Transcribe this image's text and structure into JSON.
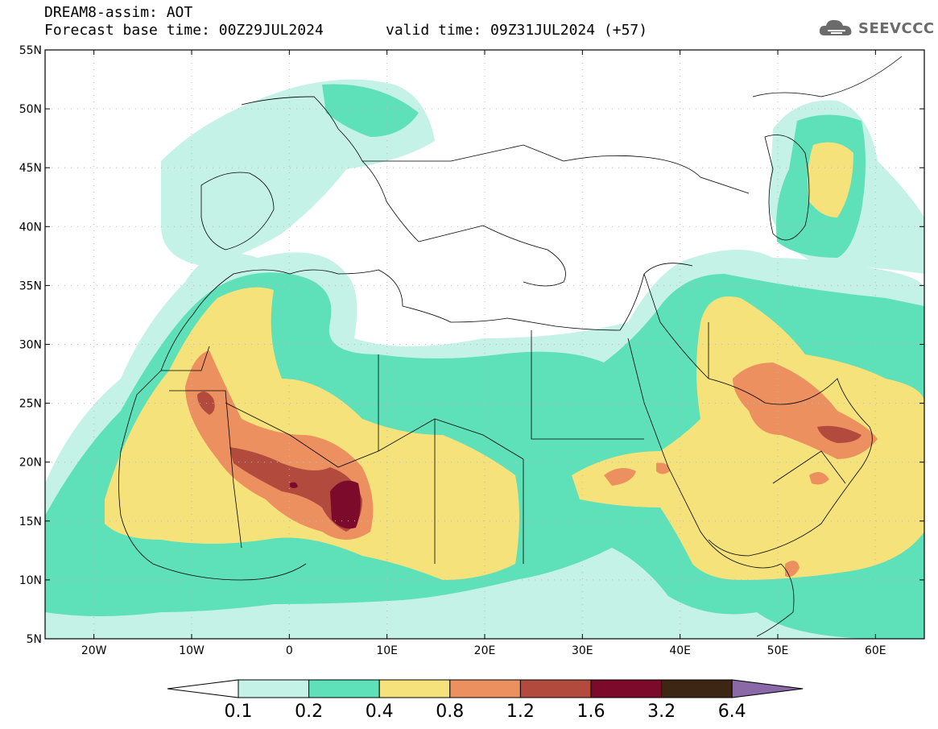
{
  "title": {
    "line1": "DREAM8-assim: AOT",
    "line2": "Forecast base time: 00Z29JUL2024",
    "valid": "valid time: 09Z31JUL2024 (+57)"
  },
  "logo": {
    "text": "SEEVCCC",
    "icon": "cloud-icon"
  },
  "map": {
    "lon_range": [
      -25,
      65
    ],
    "lat_range": [
      5,
      55
    ],
    "lat_labels": [
      "55N",
      "50N",
      "45N",
      "40N",
      "35N",
      "30N",
      "25N",
      "20N",
      "15N",
      "10N",
      "5N"
    ],
    "lat_values": [
      55,
      50,
      45,
      40,
      35,
      30,
      25,
      20,
      15,
      10,
      5
    ],
    "lon_labels": [
      "20W",
      "10W",
      "0",
      "10E",
      "20E",
      "30E",
      "40E",
      "50E",
      "60E"
    ],
    "lon_values": [
      -20,
      -10,
      0,
      10,
      20,
      30,
      40,
      50,
      60
    ]
  },
  "colorbar": {
    "labels": [
      "0.1",
      "0.2",
      "0.4",
      "0.8",
      "1.2",
      "1.6",
      "3.2",
      "6.4"
    ],
    "colors": [
      "#ffffff",
      "#c5f2e6",
      "#5ee0b8",
      "#f5e27a",
      "#ec9060",
      "#b24a3e",
      "#7c0a2a",
      "#3e2614",
      "#8b68a8"
    ]
  }
}
